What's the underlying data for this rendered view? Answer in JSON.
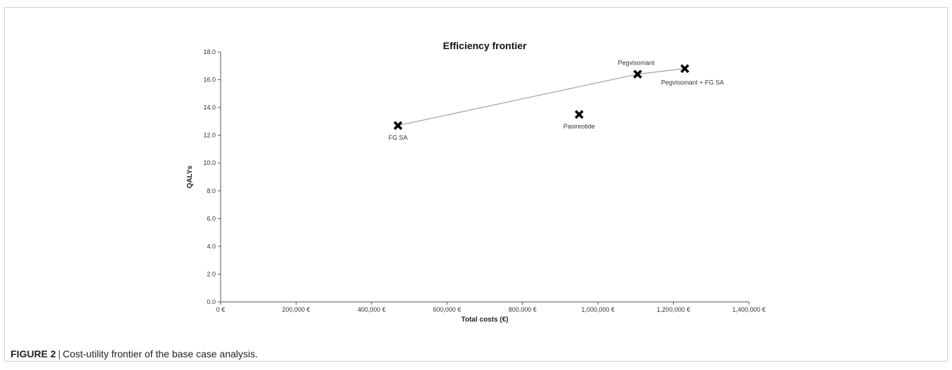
{
  "figure": {
    "caption_label": "FIGURE 2",
    "caption_separator": "|",
    "caption_text": "Cost-utility frontier of the base case analysis."
  },
  "chart_data": {
    "type": "scatter",
    "title": "Efficiency frontier",
    "xlabel": "Total costs (€)",
    "ylabel": "QALYs",
    "xlim": [
      0,
      1400000
    ],
    "ylim": [
      0,
      18
    ],
    "x_ticks": [
      {
        "value": 0,
        "label": "0 €"
      },
      {
        "value": 200000,
        "label": "200,000 €"
      },
      {
        "value": 400000,
        "label": "400,000 €"
      },
      {
        "value": 600000,
        "label": "600,000 €"
      },
      {
        "value": 800000,
        "label": "800,000 €"
      },
      {
        "value": 1000000,
        "label": "1,000,000 €"
      },
      {
        "value": 1200000,
        "label": "1,200,000 €"
      },
      {
        "value": 1400000,
        "label": "1,400,000 €"
      }
    ],
    "y_ticks": [
      {
        "value": 0,
        "label": "0.0"
      },
      {
        "value": 2,
        "label": "2.0"
      },
      {
        "value": 4,
        "label": "4.0"
      },
      {
        "value": 6,
        "label": "6.0"
      },
      {
        "value": 8,
        "label": "8.0"
      },
      {
        "value": 10,
        "label": "10.0"
      },
      {
        "value": 12,
        "label": "12.0"
      },
      {
        "value": 14,
        "label": "14.0"
      },
      {
        "value": 16,
        "label": "16.0"
      },
      {
        "value": 18,
        "label": "18.0"
      }
    ],
    "points": [
      {
        "label": "FG SA",
        "x": 470000,
        "y": 12.7,
        "label_position": "below"
      },
      {
        "label": "Pasireotide",
        "x": 950000,
        "y": 13.5,
        "label_position": "below"
      },
      {
        "label": "Pegvisomant",
        "x": 1105000,
        "y": 16.4,
        "label_position": "above"
      },
      {
        "label": "Pegvisomant + FG SA",
        "x": 1230000,
        "y": 16.8,
        "label_position": "below-right"
      }
    ],
    "frontier": [
      "FG SA",
      "Pegvisomant",
      "Pegvisomant + FG SA"
    ],
    "grid": false,
    "legend": "none",
    "colors": {
      "marker": "#000000",
      "frontier_line": "#a6a6a6",
      "axis": "#555555",
      "text": "#333333"
    }
  }
}
